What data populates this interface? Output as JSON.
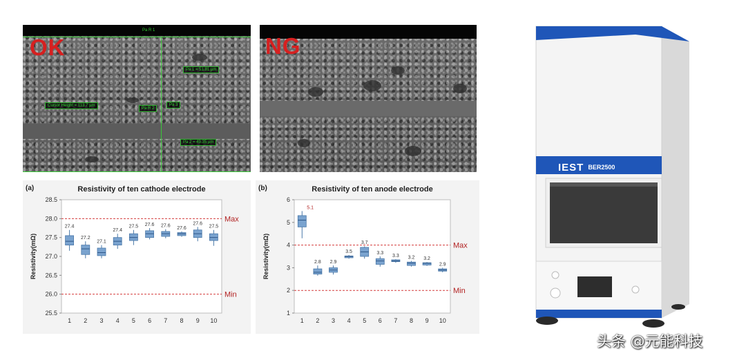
{
  "images": {
    "ok": {
      "tag": "OK",
      "labels": {
        "top": "Pa R 1",
        "pa1": "Pa 1 = 51.81 µm",
        "cursor": "Cursor Height = 113.7 µm",
        "pa2": "Pa 2 = 49.35 µm",
        "mid": "Pa R 2",
        "side": "Pa 3"
      }
    },
    "ng": {
      "tag": "NG"
    }
  },
  "chart_data": [
    {
      "type": "box",
      "panel_letter": "(a)",
      "title": "Resistivity of ten cathode electrode",
      "ylabel": "Resistivity(mΩ)",
      "ylim": [
        25.5,
        28.5
      ],
      "yticks": [
        "25.5",
        "26.0",
        "26.5",
        "27.0",
        "27.5",
        "28.0",
        "28.5"
      ],
      "categories": [
        "1",
        "2",
        "3",
        "4",
        "5",
        "6",
        "7",
        "8",
        "9",
        "10"
      ],
      "values": [
        27.4,
        27.2,
        27.1,
        27.4,
        27.5,
        27.6,
        27.6,
        27.6,
        27.6,
        27.5
      ],
      "labels": [
        "27.4",
        "27.2",
        "27.1",
        "27.4",
        "27.5",
        "27.6",
        "27.6",
        "27.6",
        "27.6",
        "27.5"
      ],
      "boxes": [
        {
          "min": 27.15,
          "q1": 27.3,
          "q3": 27.55,
          "max": 27.7
        },
        {
          "min": 26.95,
          "q1": 27.05,
          "q3": 27.3,
          "max": 27.4
        },
        {
          "min": 26.95,
          "q1": 27.02,
          "q3": 27.22,
          "max": 27.3
        },
        {
          "min": 27.2,
          "q1": 27.3,
          "q3": 27.5,
          "max": 27.6
        },
        {
          "min": 27.3,
          "q1": 27.42,
          "q3": 27.6,
          "max": 27.7
        },
        {
          "min": 27.45,
          "q1": 27.5,
          "q3": 27.68,
          "max": 27.75
        },
        {
          "min": 27.48,
          "q1": 27.53,
          "q3": 27.66,
          "max": 27.72
        },
        {
          "min": 27.52,
          "q1": 27.55,
          "q3": 27.63,
          "max": 27.66
        },
        {
          "min": 27.4,
          "q1": 27.5,
          "q3": 27.7,
          "max": 27.78
        },
        {
          "min": 27.28,
          "q1": 27.42,
          "q3": 27.6,
          "max": 27.7
        }
      ],
      "ref_lines": [
        {
          "label": "Max",
          "value": 28.0
        },
        {
          "label": "Min",
          "value": 26.0
        }
      ]
    },
    {
      "type": "box",
      "panel_letter": "(b)",
      "title": "Resistivity of ten anode electrode",
      "ylabel": "Resistivity(mΩ)",
      "ylim": [
        1,
        6
      ],
      "yticks": [
        "1",
        "2",
        "3",
        "4",
        "5",
        "6"
      ],
      "categories": [
        "1",
        "2",
        "3",
        "4",
        "5",
        "6",
        "7",
        "8",
        "9",
        "10"
      ],
      "values": [
        5.1,
        2.8,
        2.9,
        3.5,
        3.7,
        3.3,
        3.3,
        3.2,
        3.2,
        2.9
      ],
      "labels": [
        "5.1",
        "2.8",
        "2.9",
        "3.5",
        "3.7",
        "3.3",
        "3.3",
        "3.2",
        "3.2",
        "2.9"
      ],
      "boxes": [
        {
          "min": 4.3,
          "q1": 4.8,
          "q3": 5.3,
          "max": 5.5
        },
        {
          "min": 2.65,
          "q1": 2.72,
          "q3": 2.95,
          "max": 3.1
        },
        {
          "min": 2.7,
          "q1": 2.8,
          "q3": 3.0,
          "max": 3.1
        },
        {
          "min": 3.4,
          "q1": 3.44,
          "q3": 3.52,
          "max": 3.56
        },
        {
          "min": 3.4,
          "q1": 3.5,
          "q3": 3.9,
          "max": 3.95
        },
        {
          "min": 3.05,
          "q1": 3.15,
          "q3": 3.4,
          "max": 3.5
        },
        {
          "min": 3.22,
          "q1": 3.27,
          "q3": 3.35,
          "max": 3.38
        },
        {
          "min": 3.05,
          "q1": 3.1,
          "q3": 3.25,
          "max": 3.3
        },
        {
          "min": 3.08,
          "q1": 3.12,
          "q3": 3.22,
          "max": 3.25
        },
        {
          "min": 2.8,
          "q1": 2.85,
          "q3": 2.95,
          "max": 3.0
        }
      ],
      "ref_lines": [
        {
          "label": "Max",
          "value": 4.0
        },
        {
          "label": "Min",
          "value": 2.0
        }
      ]
    }
  ],
  "device": {
    "brand": "IEST",
    "model": "BER2500"
  },
  "watermark": "头条 @元能科技",
  "colors": {
    "box_fill": "#7aa3cf",
    "box_stroke": "#4a78a8",
    "ref_line": "#d43c3c",
    "device_blue": "#1f56b8"
  }
}
